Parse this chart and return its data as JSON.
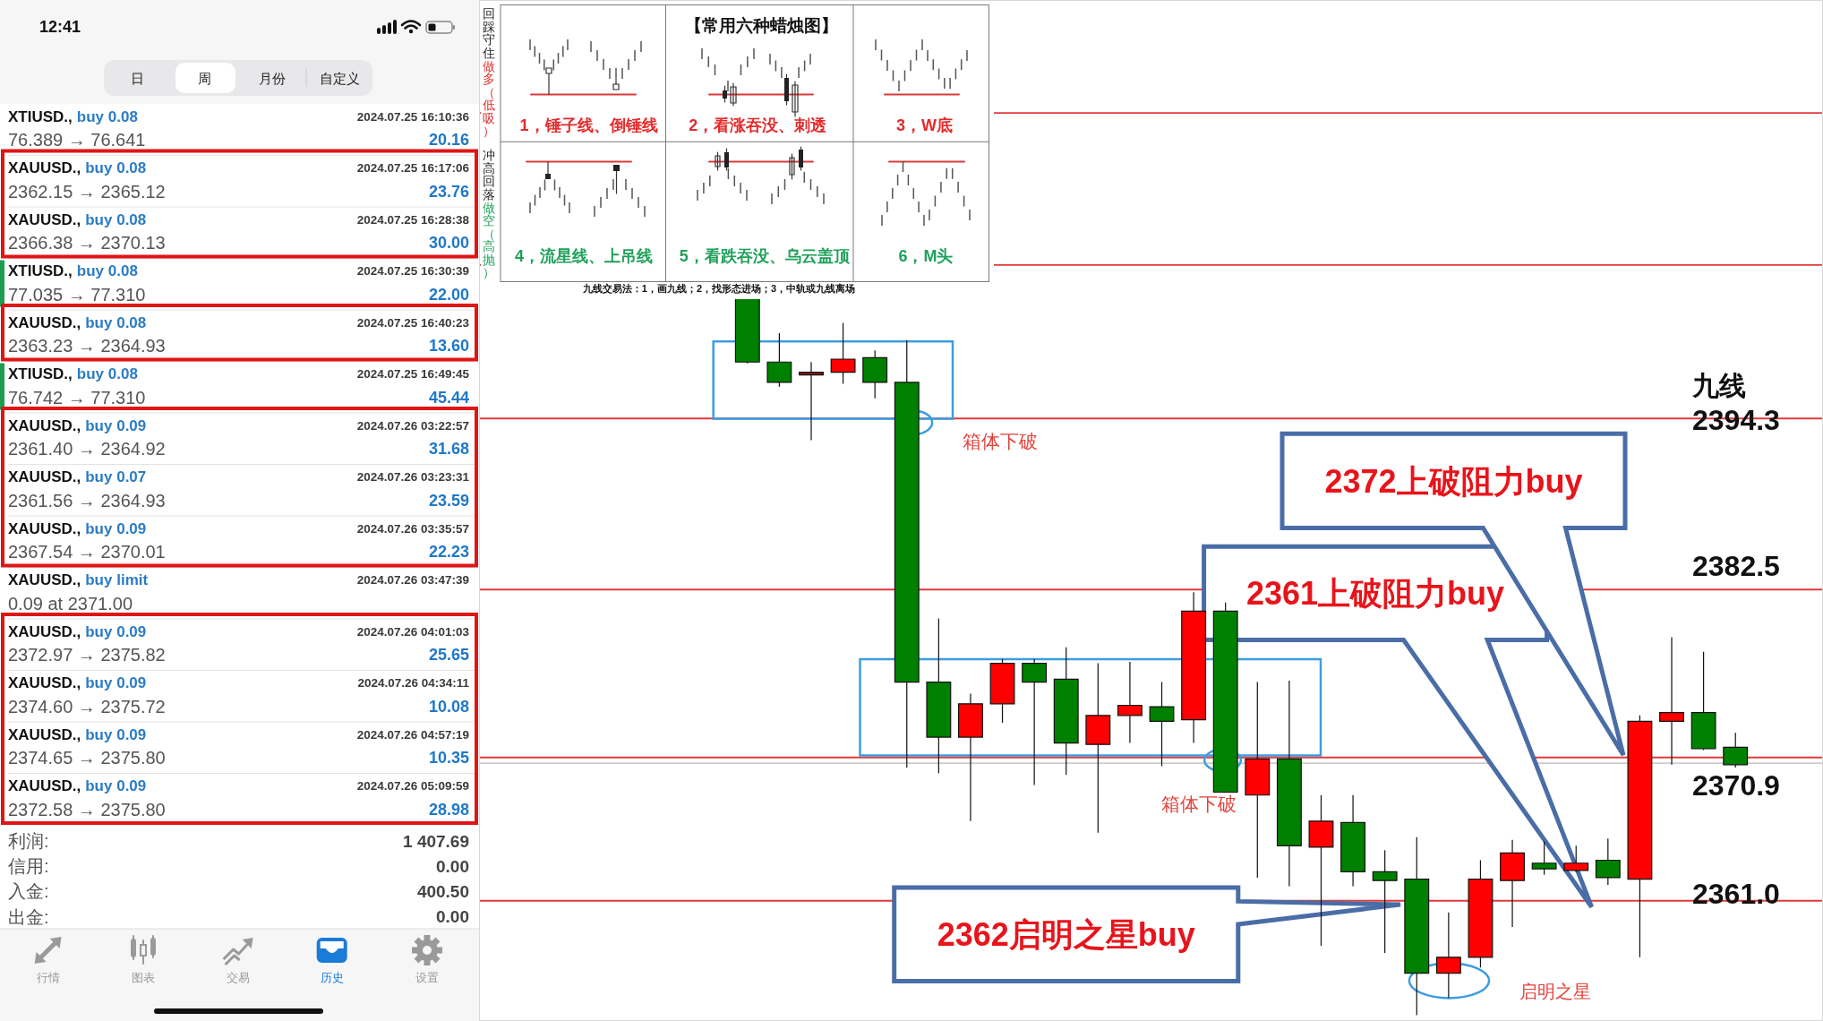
{
  "chart_data": [
    {
      "type": "other",
      "annotations": [
        "12:41",
        "日",
        "周",
        "月份",
        "自定义",
        "XTIUSD.,",
        "buy 0.08",
        "2024.07.25 16:10:36",
        "76.389 → 76.641",
        "20.16",
        "XAUUSD.,",
        "buy 0.08",
        "2024.07.25 16:17:06",
        "2362.15 → 2365.12",
        "23.76",
        "XAUUSD.,",
        "buy 0.08",
        "2024.07.25 16:28:38",
        "2366.38 → 2370.13",
        "30.00",
        "XTIUSD.,",
        "buy 0.08",
        "2024.07.25 16:30:39",
        "77.035 → 77.310",
        "22.00",
        "XAUUSD.,",
        "buy 0.08",
        "2024.07.25 16:40:23",
        "2363.23 → 2364.93",
        "13.60",
        "XTIUSD.,",
        "buy 0.08",
        "2024.07.25 16:49:45",
        "76.742 → 77.310",
        "45.44",
        "XAUUSD.,",
        "buy 0.09",
        "2024.07.26 03:22:57",
        "2361.40 → 2364.92",
        "31.68",
        "XAUUSD.,",
        "buy 0.07",
        "2024.07.26 03:23:31",
        "2361.56 → 2364.93",
        "23.59",
        "XAUUSD.,",
        "buy 0.09",
        "2024.07.26 03:35:57",
        "2367.54 → 2370.01",
        "22.23",
        "XAUUSD.,",
        "buy limit",
        "2024.07.26 03:47:39",
        "0.09 at 2371.00",
        "XAUUSD.,",
        "buy 0.09",
        "2024.07.26 04:01:03",
        "2372.97 → 2375.82",
        "25.65",
        "XAUUSD.,",
        "buy 0.09",
        "2024.07.26 04:34:11",
        "2374.60 → 2375.72",
        "10.08",
        "XAUUSD.,",
        "buy 0.09",
        "2024.07.26 04:57:19",
        "2374.65 → 2375.80",
        "10.35",
        "XAUUSD.,",
        "buy 0.09",
        "2024.07.26 05:09:59",
        "2372.58 → 2375.80",
        "28.98",
        "利润:",
        "1 407.69",
        "信用:",
        "0.00",
        "入金:",
        "400.50",
        "出金:",
        "0.00",
        "行情",
        "图表",
        "交易",
        "历史",
        "设置"
      ]
    },
    {
      "type": "other",
      "title": "【常用六种蜡烛图】",
      "annotations": [
        "1，锤子线、倒锤线",
        "2，看涨吞没、刺透",
        "3，W底",
        "4，流星线、上吊线",
        "5，看跌吞没、乌云盖顶",
        "6，M头",
        "回踩守住",
        "做多（低吸）",
        "冲高回落",
        "做空（高抛）",
        "九线交易法：1，画九线；2，找形态进场；3，中轨或九线离场"
      ]
    },
    {
      "type": "candlestick",
      "categories": [
        null,
        null,
        null,
        null,
        null,
        null,
        null,
        null,
        null,
        null,
        null,
        null,
        null,
        null,
        null,
        null,
        null,
        null,
        null,
        null,
        null,
        null,
        null,
        null,
        null,
        null,
        null,
        null,
        null,
        null,
        null,
        null
      ],
      "ohlc": [
        [
          2402.6,
          2402.6,
          2398.1,
          2398.2
        ],
        [
          2398.2,
          2400.2,
          2396.5,
          2396.8
        ],
        [
          2397.4,
          2398.2,
          2392.8,
          2397.4
        ],
        [
          2397.5,
          2400.9,
          2396.7,
          2398.4
        ],
        [
          2398.5,
          2399.0,
          2395.7,
          2396.8
        ],
        [
          2396.8,
          2399.7,
          2370.2,
          2376.1
        ],
        [
          2376.1,
          2380.5,
          2369.8,
          2372.3
        ],
        [
          2372.3,
          2375.3,
          2366.5,
          2374.6
        ],
        [
          2374.6,
          2377.7,
          2373.3,
          2377.4
        ],
        [
          2377.4,
          2377.7,
          2369.0,
          2376.1
        ],
        [
          2376.3,
          2378.5,
          2369.7,
          2371.9
        ],
        [
          2371.8,
          2377.4,
          2365.7,
          2373.8
        ],
        [
          2373.8,
          2377.5,
          2371.9,
          2374.5
        ],
        [
          2374.4,
          2376.1,
          2370.3,
          2373.4
        ],
        [
          2373.5,
          2382.3,
          2371.9,
          2381.0
        ],
        [
          2381.0,
          2381.6,
          2368.5,
          2368.5
        ],
        [
          2368.3,
          2376.1,
          2362.6,
          2370.8
        ],
        [
          2370.8,
          2376.2,
          2362.0,
          2364.8
        ],
        [
          2364.7,
          2368.3,
          2357.9,
          2366.5
        ],
        [
          2366.4,
          2368.3,
          2362.0,
          2363.0
        ],
        [
          2363.0,
          2364.5,
          2357.4,
          2362.4
        ],
        [
          2362.5,
          2365.4,
          2353.1,
          2356.0
        ],
        [
          2356.0,
          2360.2,
          2354.3,
          2357.1
        ],
        [
          2357.1,
          2363.8,
          2356.4,
          2362.5
        ],
        [
          2362.4,
          2365.2,
          2359.2,
          2364.3
        ],
        [
          2363.6,
          2365.1,
          2362.8,
          2363.2
        ],
        [
          2363.1,
          2364.8,
          2363.0,
          2363.6
        ],
        [
          2363.8,
          2365.3,
          2362.1,
          2362.6
        ],
        [
          2362.5,
          2373.8,
          2357.1,
          2373.4
        ],
        [
          2373.4,
          2379.2,
          2370.4,
          2374.0
        ],
        [
          2374.0,
          2378.2,
          2371.4,
          2371.5
        ],
        [
          2371.6,
          2372.6,
          2370.2,
          2370.4
        ]
      ],
      "colors": [
        "#008000",
        "#008000",
        "#8b1a1a",
        "#ff0000",
        "#008000",
        "#008000",
        "#008000",
        "#ff0000",
        "#ff0000",
        "#008000",
        "#008000",
        "#ff0000",
        "#ff0000",
        "#008000",
        "#ff0000",
        "#008000",
        "#ff0000",
        "#008000",
        "#ff0000",
        "#008000",
        "#008000",
        "#008000",
        "#ff0000",
        "#ff0000",
        "#ff0000",
        "#008000",
        "#ff0000",
        "#008000",
        "#ff0000",
        "#ff0000",
        "#008000",
        "#008000"
      ],
      "ylim": [
        2352.7,
        2423.2
      ],
      "tick_labels": false,
      "ref_lines": [
        {
          "axis": "y",
          "value": 2415.4,
          "color": "#e23a3a"
        },
        {
          "axis": "y",
          "value": 2404.9,
          "color": "#e23a3a"
        },
        {
          "axis": "y",
          "value": 2394.3,
          "label": "2394.3",
          "color": "#e23a3a"
        },
        {
          "axis": "y",
          "value": 2382.5,
          "label": "2382.5",
          "color": "#e23a3a"
        },
        {
          "axis": "y",
          "value": 2370.9,
          "label": "2370.9",
          "color": "#e23a3a"
        },
        {
          "axis": "y",
          "value": 2361.0,
          "label": "2361.0",
          "color": "#e23a3a"
        },
        {
          "axis": "y",
          "value": 2370.5,
          "color": "#cccccc"
        }
      ],
      "annotations": [
        "九线",
        "箱体下破",
        "箱体下破",
        "启明之星",
        "2372上破阻力buy",
        "2361上破阻力buy",
        "2362启明之星buy"
      ]
    }
  ]
}
